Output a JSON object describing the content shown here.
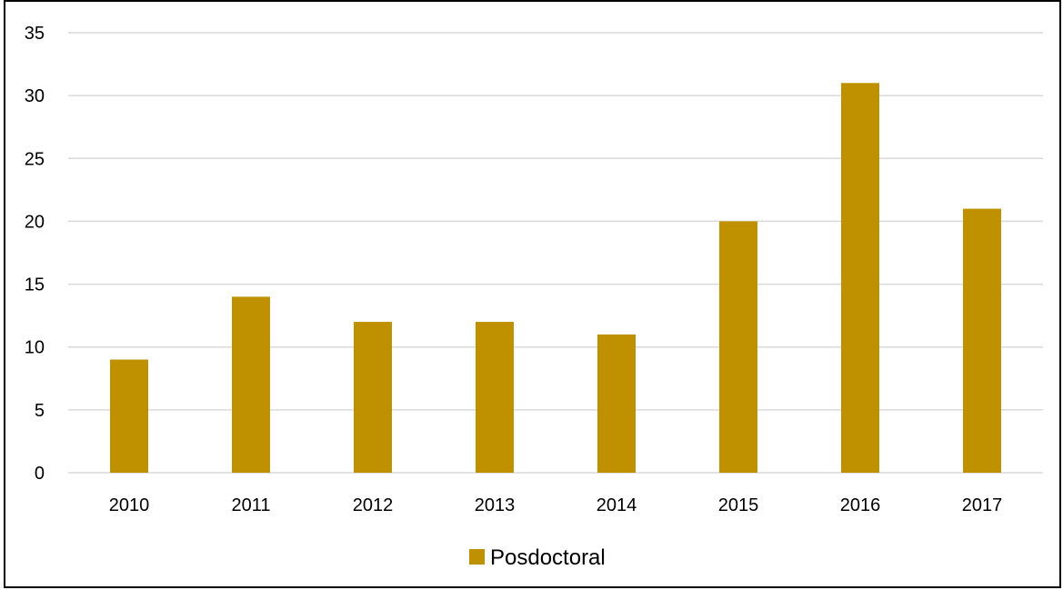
{
  "chart_data": {
    "type": "bar",
    "categories": [
      "2010",
      "2011",
      "2012",
      "2013",
      "2014",
      "2015",
      "2016",
      "2017"
    ],
    "series": [
      {
        "name": "Posdoctoral",
        "values": [
          9,
          14,
          12,
          12,
          11,
          20,
          31,
          21
        ],
        "color": "#BF9000"
      }
    ],
    "yticks": [
      "0",
      "5",
      "10",
      "15",
      "20",
      "25",
      "30",
      "35"
    ],
    "ylim": [
      0,
      35
    ],
    "grid": true,
    "gridColor": "#D9D9D9",
    "legend": "bottom"
  }
}
